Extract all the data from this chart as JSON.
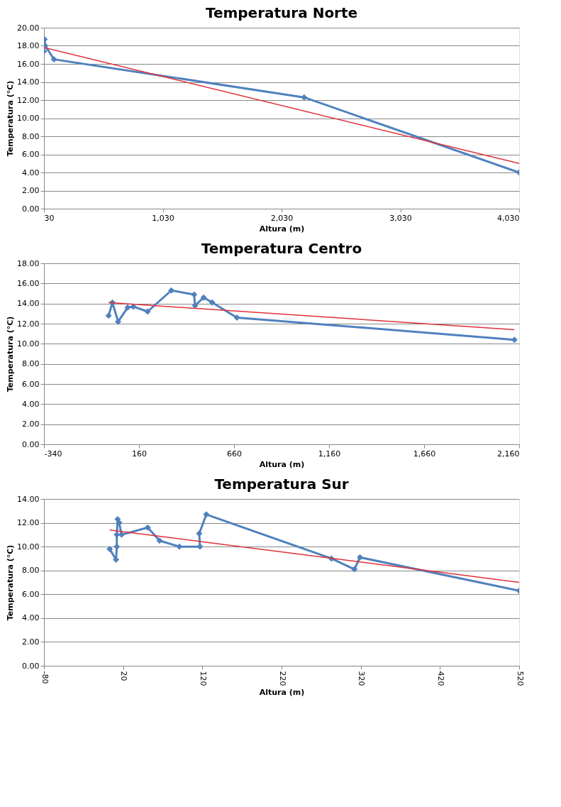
{
  "chart_data": [
    {
      "type": "line",
      "title": "Temperatura Norte",
      "xlabel": "Altura (m)",
      "ylabel": "Temperatura (°C)",
      "xlim": [
        30,
        4030
      ],
      "ylim": [
        0,
        20
      ],
      "xticks": [
        30,
        {
          "value": 1030,
          "label": "1,030"
        },
        {
          "value": 2030,
          "label": "2,030"
        },
        {
          "value": 3030,
          "label": "3,030"
        },
        {
          "value": 4030,
          "label": "4,030"
        }
      ],
      "yticks": [
        {
          "value": 0,
          "label": "0.00"
        },
        {
          "value": 2,
          "label": "2.00"
        },
        {
          "value": 4,
          "label": "4.00"
        },
        {
          "value": 6,
          "label": "6.00"
        },
        {
          "value": 8,
          "label": "8.00"
        },
        {
          "value": 10,
          "label": "10.00"
        },
        {
          "value": 12,
          "label": "12.00"
        },
        {
          "value": 14,
          "label": "14.00"
        },
        {
          "value": 16,
          "label": "16.00"
        },
        {
          "value": 18,
          "label": "18.00"
        },
        {
          "value": 20,
          "label": "20.00"
        }
      ],
      "grid": "y",
      "marker": "diamond",
      "series": [
        {
          "color": "#4f81bd",
          "x": [
            30,
            35,
            40,
            115,
            2220,
            4030
          ],
          "values": [
            17.4,
            18.7,
            18.0,
            16.5,
            12.3,
            4.0
          ]
        },
        {
          "type": "line",
          "color": "#e0303a",
          "marker": "none",
          "x": [
            30,
            4030
          ],
          "values": [
            17.8,
            5.0
          ]
        }
      ]
    },
    {
      "type": "line",
      "title": "Temperatura Centro",
      "xlabel": "Altura (m)",
      "ylabel": "Temperatura (°C)",
      "xlim": [
        -340,
        2160
      ],
      "ylim": [
        0,
        18
      ],
      "xticks": [
        -340,
        160,
        660,
        {
          "value": 1160,
          "label": "1,160"
        },
        {
          "value": 1660,
          "label": "1,660"
        },
        {
          "value": 2160,
          "label": "2,160"
        }
      ],
      "yticks": [
        {
          "value": 0,
          "label": "0.00"
        },
        {
          "value": 2,
          "label": "2.00"
        },
        {
          "value": 4,
          "label": "4.00"
        },
        {
          "value": 6,
          "label": "6.00"
        },
        {
          "value": 8,
          "label": "8.00"
        },
        {
          "value": 10,
          "label": "10.00"
        },
        {
          "value": 12,
          "label": "12.00"
        },
        {
          "value": 14,
          "label": "14.00"
        },
        {
          "value": 16,
          "label": "16.00"
        },
        {
          "value": 18,
          "label": "18.00"
        }
      ],
      "grid": "y",
      "marker": "diamond",
      "series": [
        {
          "color": "#4f81bd",
          "x": [
            0,
            20,
            50,
            100,
            130,
            205,
            330,
            450,
            455,
            500,
            545,
            675,
            2135
          ],
          "values": [
            12.8,
            14.1,
            12.2,
            13.6,
            13.7,
            13.2,
            15.3,
            14.9,
            13.8,
            14.6,
            14.1,
            12.6,
            10.4
          ]
        },
        {
          "type": "line",
          "color": "#e0303a",
          "marker": "none",
          "x": [
            0,
            2135
          ],
          "values": [
            14.1,
            11.4
          ]
        }
      ]
    },
    {
      "type": "line",
      "title": "Temperatura Sur",
      "xlabel": "Altura (m)",
      "ylabel": "Temperatura (°C)",
      "xlim": [
        -80,
        520
      ],
      "ylim": [
        0,
        14
      ],
      "xticks": [
        -80,
        20,
        120,
        220,
        320,
        420,
        520
      ],
      "yticks": [
        {
          "value": 0,
          "label": "0.00"
        },
        {
          "value": 2,
          "label": "2.00"
        },
        {
          "value": 4,
          "label": "4.00"
        },
        {
          "value": 6,
          "label": "6.00"
        },
        {
          "value": 8,
          "label": "8.00"
        },
        {
          "value": 10,
          "label": "10.00"
        },
        {
          "value": 12,
          "label": "12.00"
        },
        {
          "value": 14,
          "label": "14.00"
        }
      ],
      "grid": "y",
      "marker": "diamond",
      "series": [
        {
          "color": "#4f81bd",
          "x": [
            3,
            11,
            12,
            12,
            13,
            15,
            18,
            51,
            66,
            91,
            117,
            116,
            125,
            283,
            312,
            319,
            520
          ],
          "values": [
            9.8,
            8.9,
            10.0,
            11.0,
            12.3,
            12.0,
            11.0,
            11.6,
            10.5,
            10.0,
            10.0,
            11.1,
            12.7,
            9.0,
            8.1,
            9.1,
            6.3
          ]
        },
        {
          "type": "line",
          "color": "#e0303a",
          "marker": "none",
          "x": [
            3,
            520
          ],
          "values": [
            11.4,
            7.0
          ]
        }
      ]
    }
  ]
}
